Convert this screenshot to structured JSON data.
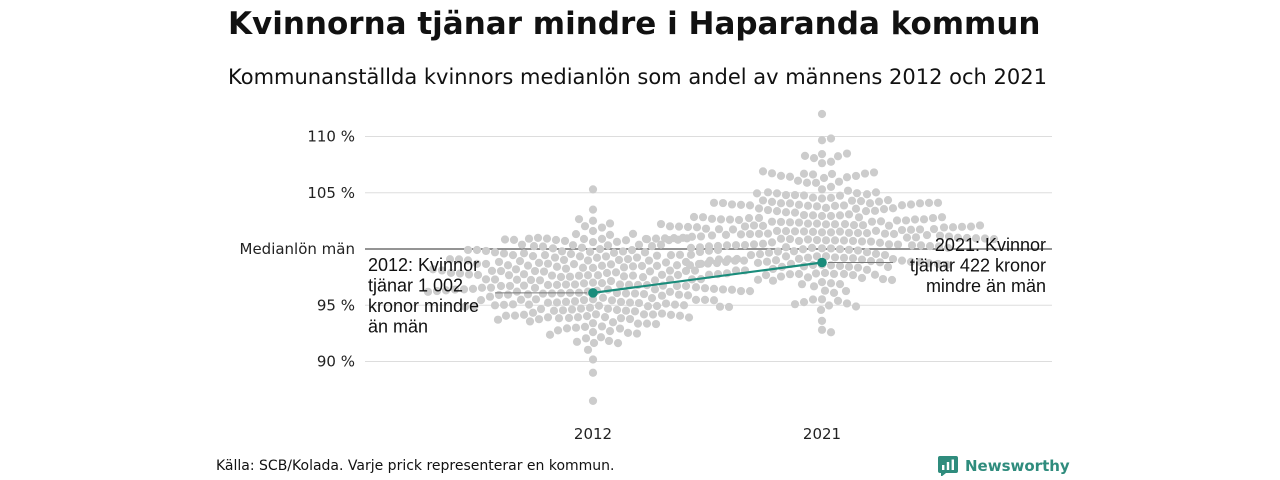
{
  "header": {
    "title": "Kvinnorna tjänar mindre i Haparanda kommun",
    "subtitle": "Kommunanställda kvinnors medianlön som andel av männens 2012 och 2021"
  },
  "footer": {
    "source": "Källa: SCB/Kolada. Varje prick representerar en kommun.",
    "brand": "Newsworthy"
  },
  "chart_data": {
    "type": "scatter",
    "subtype": "beeswarm",
    "categories": [
      "2012",
      "2021"
    ],
    "y_ticks": [
      {
        "value": 110,
        "label": "110 %"
      },
      {
        "value": 105,
        "label": "105 %"
      },
      {
        "value": 100,
        "label": "Medianlön män"
      },
      {
        "value": 95,
        "label": "95 %"
      },
      {
        "value": 90,
        "label": "90 %"
      }
    ],
    "ylim": [
      86,
      112
    ],
    "grid": true,
    "reference_line": {
      "value": 100,
      "label": "Medianlön män"
    },
    "distributions": [
      {
        "category": "2012",
        "min": 89.0,
        "max": 105.3,
        "center": 97.0,
        "sd": 2.6,
        "count": 290
      },
      {
        "category": "2021",
        "min": 92.6,
        "max": 112.0,
        "center": 101.5,
        "sd": 3.0,
        "count": 290
      }
    ],
    "outliers": [
      {
        "category": "2012",
        "y": 86.5
      }
    ],
    "highlight": {
      "name": "Haparanda",
      "color": "#1a8c7b",
      "points": [
        {
          "x": "2012",
          "y": 96.1
        },
        {
          "x": "2021",
          "y": 98.8
        }
      ],
      "annotations": [
        {
          "x": "2012",
          "lines": [
            "2012: Kvinnor",
            "tjänar 1 002",
            "kronor mindre",
            "än män"
          ]
        },
        {
          "x": "2021",
          "lines": [
            "2021: Kvinnor",
            "tjänar 422 kronor",
            "mindre än män"
          ]
        }
      ]
    },
    "colors": {
      "dots": "#cccccc",
      "highlight": "#1a8c7b",
      "grid": "#dddddd",
      "reference": "#555555"
    }
  }
}
